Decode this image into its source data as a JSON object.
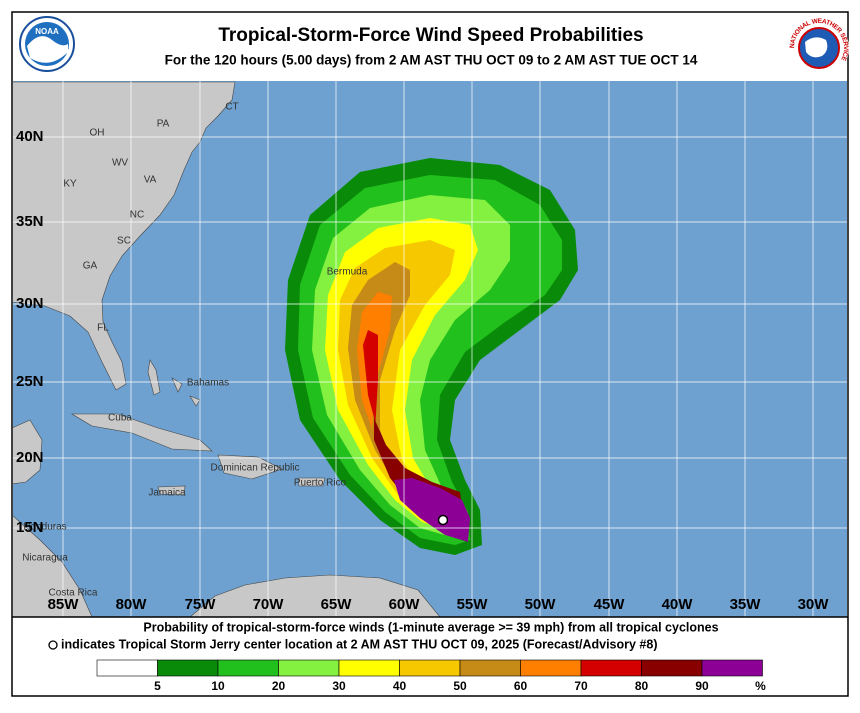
{
  "header": {
    "title": "Tropical-Storm-Force Wind Speed Probabilities",
    "subtitle": "For the 120 hours (5.00 days) from 2 AM AST THU OCT 09 to 2 AM AST TUE OCT 14",
    "logo_left": "NOAA",
    "logo_right": "NATIONAL WEATHER SERVICE"
  },
  "map": {
    "lat_labels": [
      "40N",
      "35N",
      "30N",
      "25N",
      "20N",
      "15N"
    ],
    "lon_labels": [
      "85W",
      "80W",
      "75W",
      "70W",
      "65W",
      "60W",
      "55W",
      "50W",
      "45W",
      "40W",
      "35W",
      "30W"
    ],
    "places": [
      "CT",
      "PA",
      "OH",
      "WV",
      "VA",
      "KY",
      "NC",
      "SC",
      "GA",
      "FL",
      "Bermuda",
      "Bahamas",
      "Cuba",
      "Jamaica",
      "Dominican Republic",
      "Puerto Rico",
      "Honduras",
      "Nicaragua",
      "Costa Rica"
    ]
  },
  "footer": {
    "line1": "Probability of tropical-storm-force winds (1-minute average >= 39 mph) from all tropical cyclones",
    "line2": "indicates Tropical Storm Jerry center location at 2 AM AST THU OCT 09, 2025 (Forecast/Advisory #8)"
  },
  "legend": {
    "labels": [
      5,
      10,
      20,
      30,
      40,
      50,
      60,
      70,
      80,
      90
    ],
    "unit": "%",
    "colors": [
      "#ffffff",
      "#098a09",
      "#22c01c",
      "#84f040",
      "#ffff00",
      "#f6c800",
      "#c68a17",
      "#ff7f00",
      "#d40000",
      "#880000",
      "#8c0096"
    ]
  }
}
